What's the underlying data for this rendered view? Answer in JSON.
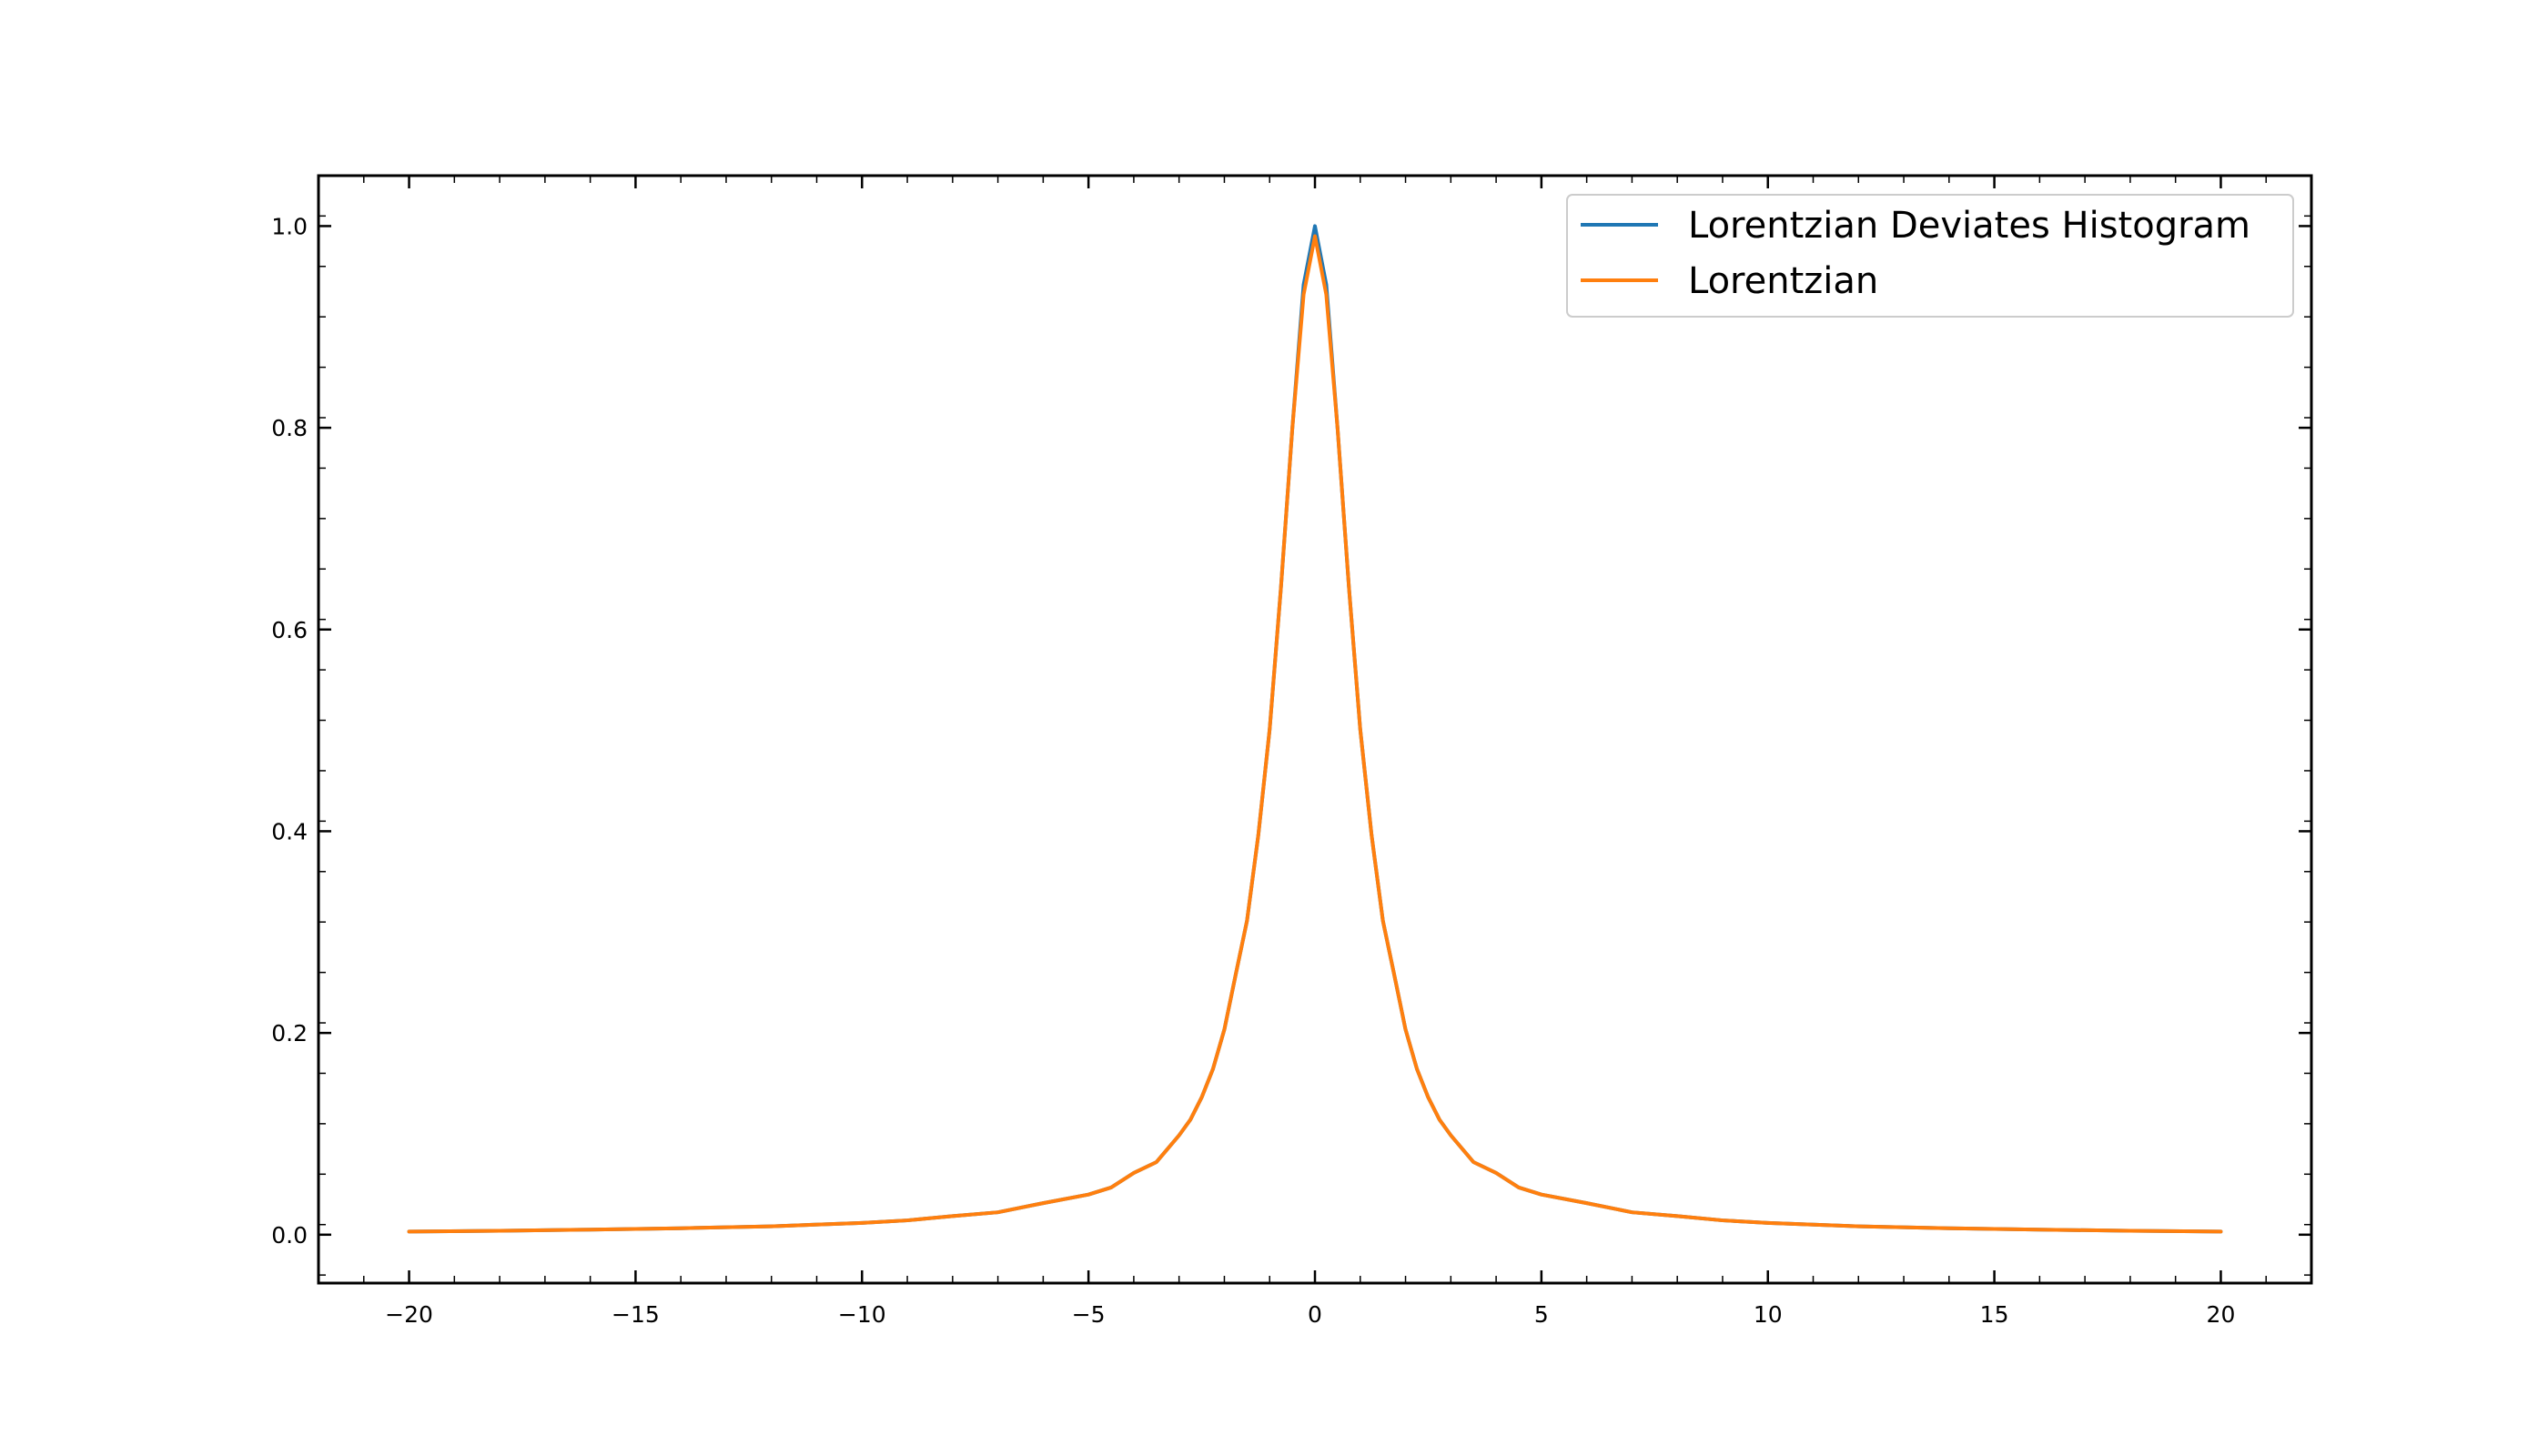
{
  "chart_data": {
    "type": "line",
    "title": "",
    "xlabel": "",
    "ylabel": "",
    "xlim": [
      -22,
      22
    ],
    "ylim": [
      -0.048,
      1.05
    ],
    "x_ticks": [
      -20,
      -15,
      -10,
      -5,
      0,
      5,
      10,
      15,
      20
    ],
    "x_tick_labels": [
      "−20",
      "−15",
      "−10",
      "−5",
      "0",
      "5",
      "10",
      "15",
      "20"
    ],
    "y_ticks": [
      0.0,
      0.2,
      0.4,
      0.6,
      0.8,
      1.0
    ],
    "y_tick_labels": [
      "0.0",
      "0.2",
      "0.4",
      "0.6",
      "0.8",
      "1.0"
    ],
    "grid": false,
    "legend_position": "top-right",
    "series": [
      {
        "name": "Lorentzian Deviates Histogram",
        "color": "#1f77b4",
        "x": [
          -20,
          -18,
          -16,
          -14,
          -12,
          -10,
          -9,
          -8,
          -7,
          -6,
          -5,
          -4.5,
          -4,
          -3.5,
          -3,
          -2.75,
          -2.5,
          -2.25,
          -2,
          -1.75,
          -1.5,
          -1.25,
          -1,
          -0.75,
          -0.5,
          -0.25,
          0,
          0.25,
          0.5,
          0.75,
          1,
          1.25,
          1.5,
          1.75,
          2,
          2.25,
          2.5,
          2.75,
          3,
          3.5,
          4,
          4.5,
          5,
          6,
          7,
          8,
          9,
          10,
          12,
          14,
          16,
          18,
          20
        ],
        "y": [
          0.0031,
          0.0039,
          0.005,
          0.0064,
          0.0083,
          0.0117,
          0.0142,
          0.0184,
          0.0222,
          0.0313,
          0.0398,
          0.0468,
          0.0612,
          0.072,
          0.0985,
          0.114,
          0.1362,
          0.1645,
          0.2034,
          0.2578,
          0.3113,
          0.3962,
          0.501,
          0.6421,
          0.799,
          0.942,
          1.0,
          0.942,
          0.799,
          0.6421,
          0.501,
          0.3962,
          0.3113,
          0.2578,
          0.2034,
          0.1645,
          0.1362,
          0.114,
          0.0985,
          0.072,
          0.0612,
          0.0468,
          0.0398,
          0.0313,
          0.0222,
          0.0184,
          0.0142,
          0.0117,
          0.0083,
          0.0064,
          0.005,
          0.0039,
          0.0031
        ]
      },
      {
        "name": "Lorentzian",
        "color": "#ff7f0e",
        "x": [
          -20,
          -18,
          -16,
          -14,
          -12,
          -10,
          -9,
          -8,
          -7,
          -6,
          -5,
          -4.5,
          -4,
          -3.5,
          -3,
          -2.75,
          -2.5,
          -2.25,
          -2,
          -1.75,
          -1.5,
          -1.25,
          -1,
          -0.75,
          -0.5,
          -0.25,
          0,
          0.25,
          0.5,
          0.75,
          1,
          1.25,
          1.5,
          1.75,
          2,
          2.25,
          2.5,
          2.75,
          3,
          3.5,
          4,
          4.5,
          5,
          6,
          7,
          8,
          9,
          10,
          12,
          14,
          16,
          18,
          20
        ],
        "y": [
          0.0031,
          0.0039,
          0.005,
          0.0064,
          0.0083,
          0.0117,
          0.0142,
          0.0184,
          0.0222,
          0.0313,
          0.0398,
          0.0468,
          0.0612,
          0.072,
          0.0985,
          0.114,
          0.1362,
          0.1645,
          0.2034,
          0.2578,
          0.3113,
          0.3962,
          0.501,
          0.6421,
          0.799,
          0.932,
          0.99,
          0.932,
          0.799,
          0.6421,
          0.501,
          0.3962,
          0.3113,
          0.2578,
          0.2034,
          0.1645,
          0.1362,
          0.114,
          0.0985,
          0.072,
          0.0612,
          0.0468,
          0.0398,
          0.0313,
          0.0222,
          0.0184,
          0.0142,
          0.0117,
          0.0083,
          0.0064,
          0.005,
          0.0039,
          0.0031
        ]
      }
    ]
  }
}
